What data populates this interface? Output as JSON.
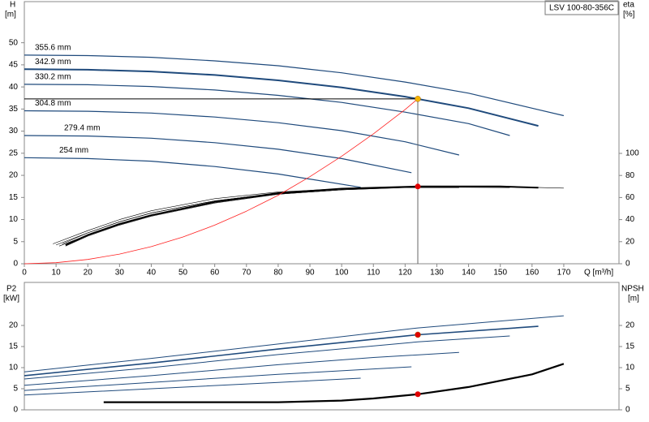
{
  "chart_data": [
    {
      "type": "line",
      "title": "LSV 100-80-356C",
      "ylabel": "H",
      "ylabel_unit": "[m]",
      "y2label": "eta",
      "y2label_unit": "[%]",
      "xlabel": "Q [m³/h]",
      "xlim": [
        0,
        187.4
      ],
      "ylim": [
        0,
        59.3
      ],
      "y2lim": [
        0,
        237.5
      ],
      "xticks": [
        0,
        10,
        20,
        30,
        40,
        50,
        60,
        70,
        80,
        90,
        100,
        110,
        120,
        130,
        140,
        150,
        160,
        170
      ],
      "yticks": [
        0,
        5,
        10,
        15,
        20,
        25,
        30,
        35,
        40,
        45,
        50
      ],
      "y2ticks": [
        0,
        20,
        40,
        60,
        80,
        100
      ],
      "guides": true,
      "operating_point": {
        "x": 124,
        "y": 37.3,
        "y2": 70
      },
      "marker_colors": [
        "#f5b400",
        "#e00000"
      ],
      "series": [
        {
          "name": "355.6 mm",
          "color": "#1f4a7c",
          "width": 1.2,
          "x": [
            0,
            20,
            40,
            60,
            80,
            100,
            120,
            140,
            160,
            170
          ],
          "values": [
            47.2,
            47.1,
            46.7,
            45.9,
            44.8,
            43.2,
            41.1,
            38.6,
            35.2,
            33.5
          ]
        },
        {
          "name": "342.9 mm",
          "color": "#1f4a7c",
          "width": 2,
          "x": [
            0,
            20,
            40,
            60,
            80,
            100,
            120,
            140,
            162
          ],
          "values": [
            44.0,
            43.9,
            43.5,
            42.7,
            41.5,
            39.9,
            37.8,
            35.2,
            31.2
          ]
        },
        {
          "name": "330.2 mm",
          "color": "#1f4a7c",
          "width": 1.2,
          "x": [
            0,
            20,
            40,
            60,
            80,
            100,
            120,
            140,
            153
          ],
          "values": [
            40.6,
            40.5,
            40.1,
            39.3,
            38.1,
            36.5,
            34.3,
            31.7,
            29.0
          ]
        },
        {
          "name": "304.8 mm",
          "color": "#1f4a7c",
          "width": 1.2,
          "x": [
            0,
            20,
            40,
            60,
            80,
            100,
            120,
            137
          ],
          "values": [
            34.6,
            34.5,
            34.1,
            33.2,
            31.9,
            30.1,
            27.6,
            24.6
          ]
        },
        {
          "name": "279.4 mm",
          "color": "#1f4a7c",
          "width": 1.2,
          "x": [
            0,
            20,
            40,
            60,
            80,
            100,
            122
          ],
          "values": [
            29.0,
            28.9,
            28.4,
            27.4,
            25.9,
            23.8,
            20.6
          ]
        },
        {
          "name": "254 mm",
          "color": "#1f4a7c",
          "width": 1.2,
          "x": [
            0,
            20,
            40,
            60,
            80,
            106
          ],
          "values": [
            24.0,
            23.8,
            23.2,
            22.0,
            20.3,
            17.3
          ]
        },
        {
          "axis": "y2",
          "color": "#000000",
          "width": 0.6,
          "x": [
            12,
            20,
            30,
            40,
            60,
            80,
            100,
            124,
            150,
            170
          ],
          "values": [
            18,
            28,
            38,
            46,
            57,
            64,
            68,
            70,
            70,
            68.5
          ]
        },
        {
          "axis": "y2",
          "color": "#000000",
          "width": 2,
          "x": [
            13,
            20,
            30,
            40,
            60,
            80,
            100,
            124,
            150,
            162
          ],
          "values": [
            17,
            26,
            36,
            44,
            56,
            64,
            68,
            70,
            70,
            69
          ]
        },
        {
          "axis": "y2",
          "color": "#000000",
          "width": 0.6,
          "x": [
            13,
            20,
            30,
            40,
            60,
            80,
            100,
            124,
            153
          ],
          "values": [
            16,
            25,
            35,
            43,
            55,
            63,
            67,
            69.5,
            69
          ]
        },
        {
          "axis": "y2",
          "color": "#000000",
          "width": 0.6,
          "x": [
            11,
            20,
            30,
            40,
            60,
            80,
            100,
            120,
            137
          ],
          "values": [
            16,
            26,
            36,
            44,
            56,
            63,
            67,
            69,
            69
          ]
        },
        {
          "axis": "y2",
          "color": "#000000",
          "width": 0.6,
          "x": [
            10,
            20,
            30,
            40,
            60,
            80,
            100,
            122
          ],
          "values": [
            17,
            28,
            38,
            46,
            57,
            64,
            68,
            69.5
          ]
        },
        {
          "axis": "y2",
          "color": "#000000",
          "width": 0.6,
          "x": [
            9,
            20,
            30,
            40,
            60,
            80,
            106
          ],
          "values": [
            18,
            30,
            40,
            48,
            59,
            65,
            69
          ]
        },
        {
          "color": "#ff2020",
          "width": 0.8,
          "x": [
            0,
            10,
            20,
            30,
            40,
            50,
            60,
            70,
            80,
            90,
            100,
            110,
            120,
            124
          ],
          "values": [
            0,
            0.24,
            0.97,
            2.18,
            3.88,
            6.06,
            8.73,
            11.9,
            15.5,
            19.7,
            24.3,
            29.4,
            34.9,
            37.3
          ]
        }
      ]
    },
    {
      "type": "line",
      "ylabel": "P2",
      "ylabel_unit": "[kW]",
      "y2label": "NPSH",
      "y2label_unit": "[m]",
      "xlim": [
        0,
        187.4
      ],
      "ylim": [
        0,
        30.2
      ],
      "y2lim": [
        0,
        30.2
      ],
      "yticks": [
        0,
        5,
        10,
        15,
        20
      ],
      "y2ticks": [
        0,
        5,
        10,
        15,
        20
      ],
      "guides": false,
      "operating_point": {
        "x": 124,
        "y": 17.8,
        "y2": 3.7
      },
      "marker_colors": [
        "#e00000",
        "#e00000"
      ],
      "series": [
        {
          "color": "#1f4a7c",
          "width": 1,
          "x": [
            0,
            40,
            80,
            124,
            170
          ],
          "values": [
            9.0,
            12.2,
            15.6,
            19.4,
            22.3
          ]
        },
        {
          "color": "#1f4a7c",
          "width": 1.6,
          "x": [
            0,
            40,
            80,
            124,
            162
          ],
          "values": [
            8.1,
            11.1,
            14.4,
            17.8,
            19.8
          ]
        },
        {
          "color": "#1f4a7c",
          "width": 1,
          "x": [
            0,
            40,
            80,
            124,
            153
          ],
          "values": [
            7.3,
            10.0,
            13.1,
            16.1,
            17.5
          ]
        },
        {
          "color": "#1f4a7c",
          "width": 1,
          "x": [
            0,
            40,
            80,
            110,
            137
          ],
          "values": [
            5.8,
            8.1,
            10.7,
            12.4,
            13.6
          ]
        },
        {
          "color": "#1f4a7c",
          "width": 1,
          "x": [
            0,
            40,
            80,
            122
          ],
          "values": [
            4.6,
            6.5,
            8.4,
            10.2
          ]
        },
        {
          "color": "#1f4a7c",
          "width": 1,
          "x": [
            0,
            40,
            80,
            106
          ],
          "values": [
            3.5,
            5.0,
            6.5,
            7.5
          ]
        },
        {
          "axis": "y2",
          "color": "#000000",
          "width": 2.2,
          "x": [
            25,
            40,
            60,
            80,
            100,
            110,
            124,
            140,
            160,
            170
          ],
          "values": [
            1.8,
            1.8,
            1.8,
            1.8,
            2.2,
            2.7,
            3.7,
            5.4,
            8.4,
            10.9
          ]
        }
      ]
    }
  ]
}
